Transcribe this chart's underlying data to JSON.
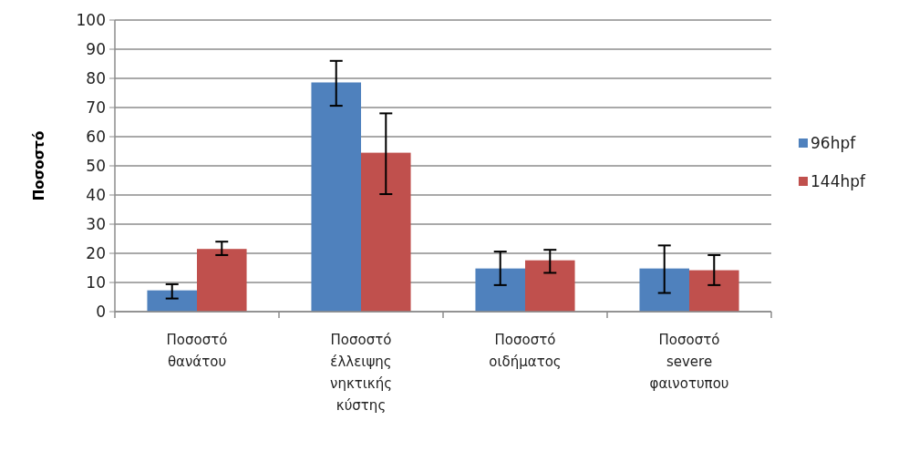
{
  "chart_data": {
    "type": "bar",
    "ylabel": "Ποσοστό",
    "categories": [
      "Ποσοστό θανάτου",
      "Ποσοστό έλλειψης νηκτικής κύστης",
      "Ποσοστό οιδήματος",
      "Ποσοστό severe φαινοτυπου"
    ],
    "series": [
      {
        "name": "96hpf",
        "color": "#4f81bd",
        "values": [
          7.3,
          78.6,
          14.8,
          14.8
        ],
        "errors": [
          [
            4.5,
            9.4
          ],
          [
            70.6,
            86
          ],
          [
            9.1,
            20.6
          ],
          [
            6.4,
            22.7
          ]
        ]
      },
      {
        "name": "144hpf",
        "color": "#c0504d",
        "values": [
          21.5,
          54.5,
          17.6,
          14.2
        ],
        "errors": [
          [
            19.4,
            24
          ],
          [
            40.3,
            68
          ],
          [
            13.3,
            21.2
          ],
          [
            9.1,
            19.4
          ]
        ]
      }
    ],
    "ylim": [
      0,
      100
    ],
    "yticks": [
      0,
      10,
      20,
      30,
      40,
      50,
      60,
      70,
      80,
      90,
      100
    ],
    "grid": "y",
    "legend": "right"
  }
}
